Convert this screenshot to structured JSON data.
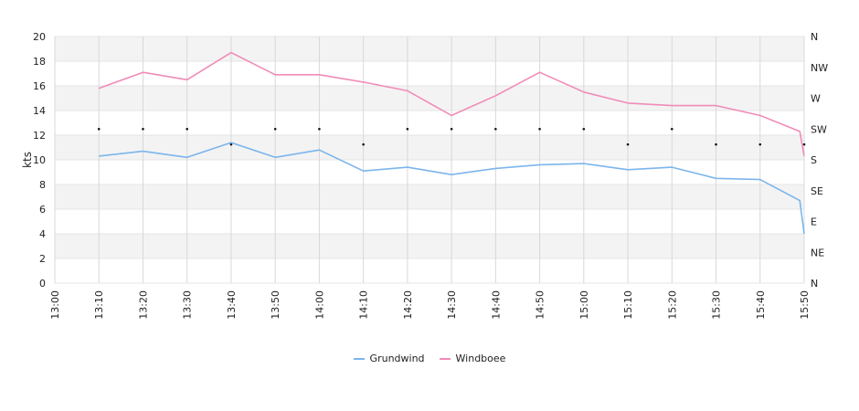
{
  "chart_data": {
    "type": "line",
    "ylabel": "kts",
    "ylim": [
      0,
      20
    ],
    "yticks": [
      "0",
      "2",
      "4",
      "6",
      "8",
      "10",
      "12",
      "14",
      "16",
      "18",
      "20"
    ],
    "direction_ticks": [
      "N",
      "NE",
      "E",
      "SE",
      "S",
      "SW",
      "W",
      "NW",
      "N"
    ],
    "x": [
      "13:00",
      "13:10",
      "13:20",
      "13:30",
      "13:40",
      "13:50",
      "14:00",
      "14:10",
      "14:20",
      "14:30",
      "14:40",
      "14:50",
      "15:00",
      "15:10",
      "15:20",
      "15:30",
      "15:40",
      "15:50"
    ],
    "grid": true,
    "legend_position": "bottom",
    "series": [
      {
        "name": "Grundwind",
        "color": "#7cb5ec",
        "points": [
          [
            1,
            10.3
          ],
          [
            2,
            10.7
          ],
          [
            3,
            10.2
          ],
          [
            4,
            11.4
          ],
          [
            5,
            10.2
          ],
          [
            6,
            10.8
          ],
          [
            7,
            9.1
          ],
          [
            8,
            9.4
          ],
          [
            9,
            8.8
          ],
          [
            10,
            9.3
          ],
          [
            11,
            9.6
          ],
          [
            12,
            9.7
          ],
          [
            13,
            9.2
          ],
          [
            14,
            9.4
          ],
          [
            15,
            8.5
          ],
          [
            16,
            8.4
          ],
          [
            16.9,
            6.7
          ],
          [
            17,
            4.0
          ]
        ]
      },
      {
        "name": "Windboee",
        "color": "#f08cb8",
        "points": [
          [
            1,
            15.8
          ],
          [
            2,
            17.1
          ],
          [
            3,
            16.5
          ],
          [
            4,
            18.7
          ],
          [
            5,
            16.9
          ],
          [
            6,
            16.9
          ],
          [
            7,
            16.3
          ],
          [
            8,
            15.6
          ],
          [
            9,
            13.6
          ],
          [
            10,
            15.2
          ],
          [
            11,
            17.1
          ],
          [
            12,
            15.5
          ],
          [
            13,
            14.6
          ],
          [
            14,
            14.4
          ],
          [
            15,
            14.4
          ],
          [
            16,
            13.6
          ],
          [
            16.9,
            12.3
          ],
          [
            17,
            10.3
          ]
        ]
      }
    ],
    "direction_points": [
      [
        1,
        225
      ],
      [
        2,
        225
      ],
      [
        3,
        225
      ],
      [
        4,
        202.5
      ],
      [
        5,
        225
      ],
      [
        6,
        225
      ],
      [
        7,
        202.5
      ],
      [
        8,
        225
      ],
      [
        9,
        225
      ],
      [
        10,
        225
      ],
      [
        11,
        225
      ],
      [
        12,
        225
      ],
      [
        13,
        202.5
      ],
      [
        14,
        225
      ],
      [
        15,
        202.5
      ],
      [
        16,
        202.5
      ],
      [
        17,
        202.5
      ]
    ]
  }
}
